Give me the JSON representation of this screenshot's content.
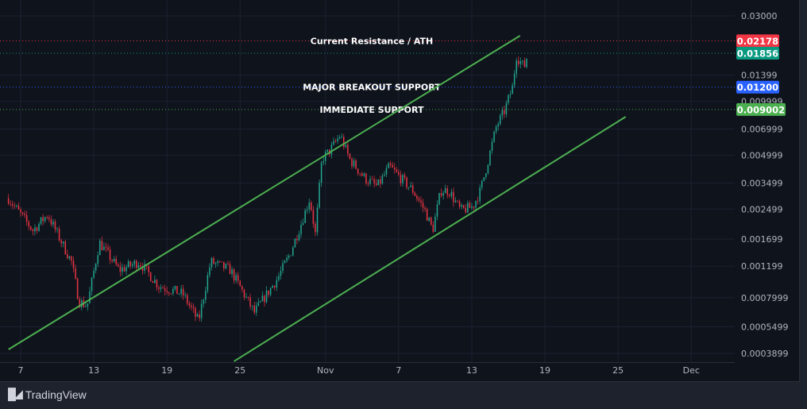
{
  "brand": {
    "name": "TradingView",
    "logo_text": "TV"
  },
  "chart_data": {
    "type": "candlestick",
    "y_scale": "log",
    "ylim": [
      0.000375,
      0.0325
    ],
    "grid": true,
    "y_ticks": [
      "0.03000",
      "0.01399",
      "0.009999",
      "0.006999",
      "0.004999",
      "0.003499",
      "0.002499",
      "0.001699",
      "0.001199",
      "0.0007999",
      "0.0005499",
      "0.0003899"
    ],
    "x_ticks": [
      {
        "label": "7",
        "date": "10-07 00:00"
      },
      {
        "label": "13",
        "date": "10-13 00:00"
      },
      {
        "label": "19",
        "date": "10-19 00:00"
      },
      {
        "label": "25",
        "date": "10-25 00:00"
      },
      {
        "label": "Nov",
        "date": "11-01 00:00"
      },
      {
        "label": "7",
        "date": "11-07 00:00"
      },
      {
        "label": "13",
        "date": "11-13 00:00"
      },
      {
        "label": "19",
        "date": "11-19 00:00"
      },
      {
        "label": "25",
        "date": "11-25 00:00"
      },
      {
        "label": "Dec",
        "date": "12-01 00:00"
      }
    ],
    "price_path": [
      [
        "10-06 00:00",
        0.00287
      ],
      [
        "10-08 00:00",
        0.0019
      ],
      [
        "10-09 05:00",
        0.00233
      ],
      [
        "10-11 04:00",
        0.00127
      ],
      [
        "10-11 19:00",
        0.00076
      ],
      [
        "10-12 11:00",
        0.00072
      ],
      [
        "10-13 11:00",
        0.00163
      ],
      [
        "10-15 02:00",
        0.00114
      ],
      [
        "10-16 17:00",
        0.00127
      ],
      [
        "10-18 08:00",
        0.00093
      ],
      [
        "10-20 07:00",
        0.00084
      ],
      [
        "10-21 14:00",
        0.00059
      ],
      [
        "10-22 14:00",
        0.00127
      ],
      [
        "10-24 05:00",
        0.00114
      ],
      [
        "10-26 04:00",
        0.00066
      ],
      [
        "10-28 02:00",
        0.00103
      ],
      [
        "10-29 02:00",
        0.0014
      ],
      [
        "10-30 01:00",
        0.00211
      ],
      [
        "10-30 17:00",
        0.00287
      ],
      [
        "10-31 04:00",
        0.00181
      ],
      [
        "10-31 17:00",
        0.00477
      ],
      [
        "11-01 08:00",
        0.00527
      ],
      [
        "11-02 05:00",
        0.00648
      ],
      [
        "11-02 23:00",
        0.00477
      ],
      [
        "11-04 06:00",
        0.0037
      ],
      [
        "11-05 06:00",
        0.00334
      ],
      [
        "11-06 06:00",
        0.00432
      ],
      [
        "11-07 05:00",
        0.0037
      ],
      [
        "11-08 04:00",
        0.00317
      ],
      [
        "11-09 04:00",
        0.00245
      ],
      [
        "11-09 19:00",
        0.0019
      ],
      [
        "11-10 11:00",
        0.00317
      ],
      [
        "11-11 03:00",
        0.00317
      ],
      [
        "11-12 02:00",
        0.00245
      ],
      [
        "11-13 02:00",
        0.00258
      ],
      [
        "11-13 17:00",
        0.00317
      ],
      [
        "11-14 09:00",
        0.00477
      ],
      [
        "11-15 00:00",
        0.00718
      ],
      [
        "11-15 16:00",
        0.0088
      ],
      [
        "11-16 08:00",
        0.01197
      ],
      [
        "11-16 16:00",
        0.018
      ],
      [
        "11-17 07:00",
        0.01545
      ],
      [
        "11-17 15:00",
        0.0189
      ]
    ],
    "up_color": "#22ab94",
    "down_color": "#f23645",
    "trendlines": [
      {
        "name": "channel-upper",
        "color": "#4caf50",
        "start": [
          "10-06 00:00",
          0.000411
        ],
        "end": [
          "11-16 23:00",
          0.02324
        ]
      },
      {
        "name": "channel-lower",
        "color": "#4caf50",
        "start": [
          "10-24 12:00",
          0.000353
        ],
        "end": [
          "11-25 15:00",
          0.0082
        ]
      }
    ],
    "horizontal_lines": [
      {
        "price": 0.02178,
        "badge": "0.02178",
        "label": "Current Resistance / ATH",
        "color": "#f23645"
      },
      {
        "price": 0.01856,
        "badge": "0.01856",
        "label": "",
        "color": "#089981"
      },
      {
        "price": 0.012,
        "badge": "0.01200",
        "label": "MAJOR BREAKOUT SUPPORT",
        "color": "#2962ff"
      },
      {
        "price": 0.009002,
        "badge": "0.009002",
        "label": "IMMEDIATE SUPPORT",
        "color": "#4caf50"
      }
    ]
  }
}
